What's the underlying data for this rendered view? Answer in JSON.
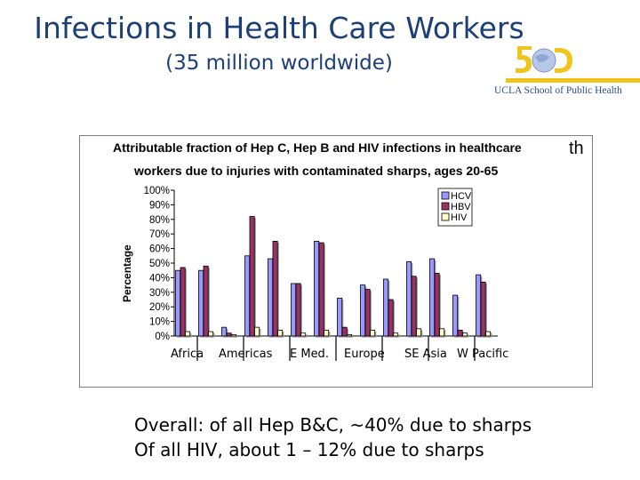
{
  "slide": {
    "title": "Infections in Health Care Workers",
    "subtitle": "(35 million worldwide)",
    "logo_text": "UCLA School of Public Health",
    "notes": [
      "Overall: of all Hep B&C, ~40% due to sharps",
      "Of all HIV, about 1 – 12% due to sharps"
    ]
  },
  "colors": {
    "title": "#1c3f7a",
    "accent": "#f0c419",
    "hcv": "#9999ff",
    "hbv": "#993366",
    "hiv": "#ffffcc"
  },
  "chart_data": {
    "type": "bar",
    "title_line1": "Attributable fraction of Hep C, Hep B and HIV infections in healthcare",
    "title_sup": "th",
    "title_line2": "workers due to injuries with contaminated sharps, ages 20-65",
    "ylabel": "Percentage",
    "ylim": [
      0,
      100
    ],
    "yticks": [
      "0%",
      "10%",
      "20%",
      "30%",
      "40%",
      "50%",
      "60%",
      "70%",
      "80%",
      "90%",
      "100%"
    ],
    "legend": [
      "HCV",
      "HBV",
      "HIV"
    ],
    "region_labels": [
      "Africa",
      "Americas",
      "E Med.",
      "Europe",
      "SE Asia",
      "W Pacific"
    ],
    "groups": [
      {
        "hcv": 45,
        "hbv": 47,
        "hiv": 3
      },
      {
        "hcv": 45,
        "hbv": 48,
        "hiv": 3
      },
      {
        "hcv": 6,
        "hbv": 2,
        "hiv": 1
      },
      {
        "hcv": 55,
        "hbv": 82,
        "hiv": 6
      },
      {
        "hcv": 53,
        "hbv": 65,
        "hiv": 4
      },
      {
        "hcv": 36,
        "hbv": 36,
        "hiv": 2
      },
      {
        "hcv": 65,
        "hbv": 64,
        "hiv": 4
      },
      {
        "hcv": 26,
        "hbv": 6,
        "hiv": 1
      },
      {
        "hcv": 35,
        "hbv": 32,
        "hiv": 4
      },
      {
        "hcv": 39,
        "hbv": 25,
        "hiv": 2
      },
      {
        "hcv": 51,
        "hbv": 41,
        "hiv": 5
      },
      {
        "hcv": 53,
        "hbv": 43,
        "hiv": 5
      },
      {
        "hcv": 28,
        "hbv": 4,
        "hiv": 2
      },
      {
        "hcv": 42,
        "hbv": 37,
        "hiv": 3
      }
    ]
  }
}
